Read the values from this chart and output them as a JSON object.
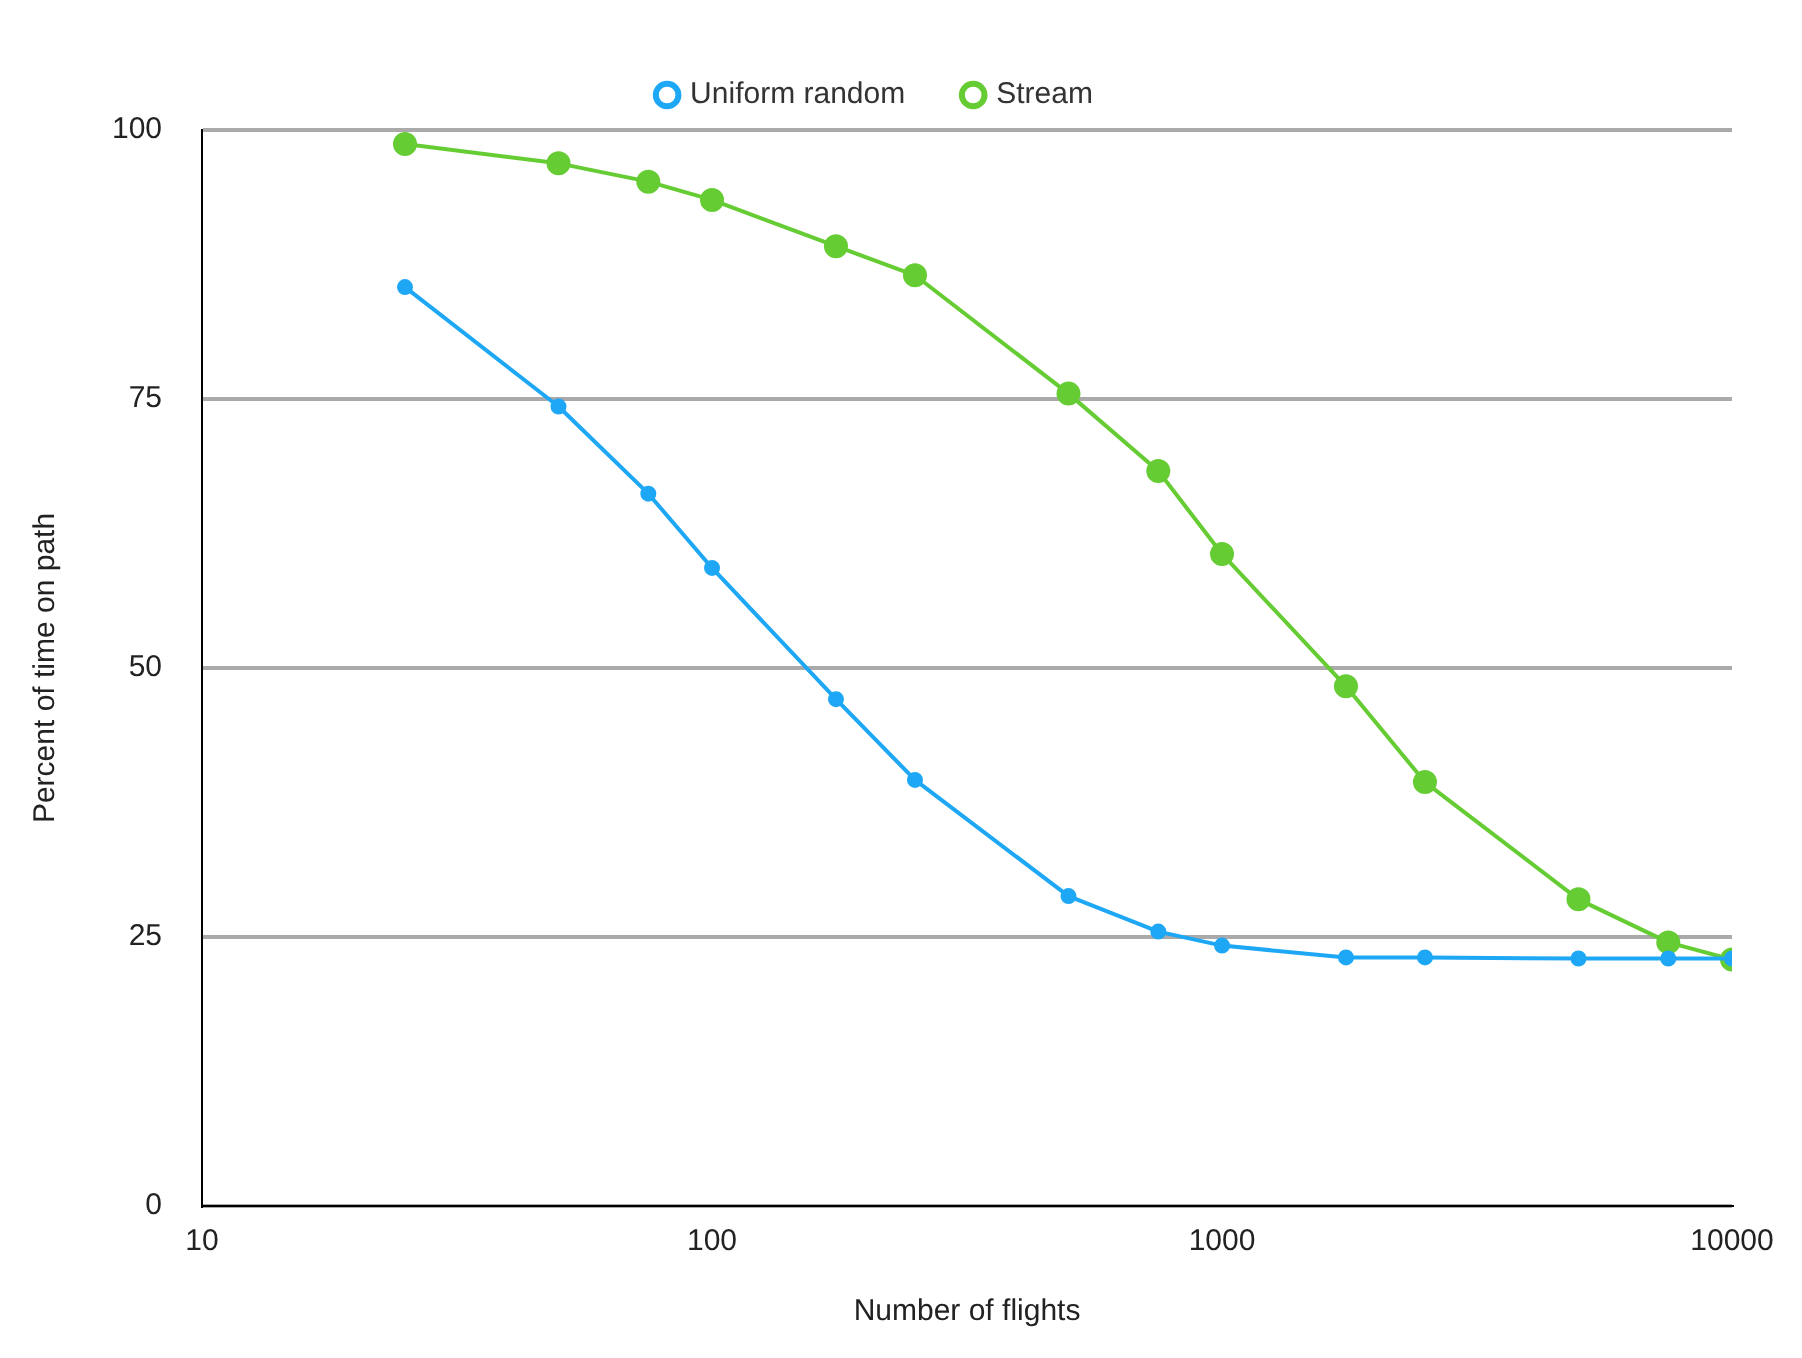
{
  "chart_data": {
    "type": "line",
    "xlabel": "Number of flights",
    "ylabel": "Percent of time on path",
    "x": [
      25,
      50,
      75,
      100,
      175,
      250,
      500,
      750,
      1000,
      1750,
      2500,
      5000,
      7500,
      10000
    ],
    "series": [
      {
        "name": "Uniform random",
        "color": "#1ea7f5",
        "values": [
          85.4,
          74.3,
          66.2,
          59.3,
          47.1,
          39.6,
          28.8,
          25.5,
          24.2,
          23.1,
          23.1,
          23,
          23,
          23
        ]
      },
      {
        "name": "Stream",
        "color": "#66cc33",
        "values": [
          98.7,
          96.9,
          95.2,
          93.5,
          89.2,
          86.5,
          75.5,
          68.3,
          60.6,
          48.3,
          39.4,
          28.5,
          24.5,
          22.9
        ]
      }
    ],
    "log": "x",
    "xlim": [
      10,
      10000
    ],
    "xticks": [
      10,
      100,
      1000,
      10000
    ],
    "ylim": [
      0,
      100
    ],
    "yticks": [
      0,
      25,
      50,
      75,
      100
    ],
    "grid": "y",
    "legend": "top",
    "marker": "circle",
    "line_style": "solid"
  }
}
